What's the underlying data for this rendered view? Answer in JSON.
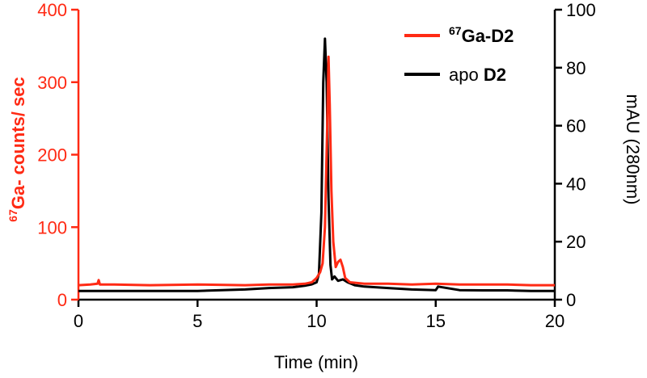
{
  "chart_data": {
    "type": "line",
    "xlabel": "Time (min)",
    "xlim": [
      0,
      20
    ],
    "x_ticks": [
      "0",
      "5",
      "10",
      "15",
      "20"
    ],
    "ylabel_left": {
      "superscript": "67",
      "text": "Ga- counts/ sec"
    },
    "ylim_left": [
      0,
      400
    ],
    "y_ticks_left": [
      "0",
      "100",
      "200",
      "300",
      "400"
    ],
    "ylabel_right": "mAU (280nm)",
    "ylim_right": [
      0,
      100
    ],
    "y_ticks_right": [
      "0",
      "20",
      "40",
      "60",
      "80",
      "100"
    ],
    "grid": false,
    "legend_position": "top-right",
    "series": [
      {
        "name": "67Ga-D2",
        "legend_superscript": "67",
        "legend_text": "Ga-D2",
        "axis": "left",
        "color": "#ff2a14",
        "x": [
          0,
          0.5,
          0.8,
          0.85,
          0.9,
          1.5,
          3,
          5,
          7,
          8,
          9,
          9.5,
          9.8,
          10.0,
          10.15,
          10.25,
          10.35,
          10.45,
          10.5,
          10.55,
          10.62,
          10.7,
          10.8,
          10.9,
          11.0,
          11.1,
          11.2,
          11.4,
          11.7,
          12,
          13,
          14,
          15,
          16,
          17,
          18,
          19,
          20
        ],
        "y": [
          20,
          21,
          22,
          27,
          21,
          21,
          20,
          21,
          20,
          21,
          21,
          22,
          24,
          30,
          38,
          50,
          100,
          250,
          335,
          270,
          150,
          80,
          45,
          52,
          55,
          45,
          30,
          24,
          23,
          22,
          22,
          21,
          22,
          21,
          21,
          21,
          20,
          20
        ]
      },
      {
        "name": "apo D2",
        "legend_prefix": "apo ",
        "legend_bold": "D2",
        "axis": "right",
        "color": "#000000",
        "x": [
          0,
          2,
          5,
          7,
          8,
          9,
          9.5,
          9.8,
          10.0,
          10.1,
          10.2,
          10.28,
          10.35,
          10.42,
          10.5,
          10.58,
          10.65,
          10.75,
          10.9,
          11.1,
          11.3,
          11.6,
          12,
          13,
          14,
          15,
          15.1,
          16,
          17,
          18,
          19,
          20
        ],
        "y": [
          3,
          3,
          3,
          3.5,
          4,
          4.3,
          4.8,
          5.3,
          6,
          9,
          30,
          75,
          90,
          75,
          35,
          12,
          7,
          8,
          6.5,
          7,
          6,
          5,
          4.5,
          4,
          3.5,
          3.3,
          4.5,
          3.3,
          3.2,
          3.2,
          3,
          3
        ]
      }
    ]
  }
}
